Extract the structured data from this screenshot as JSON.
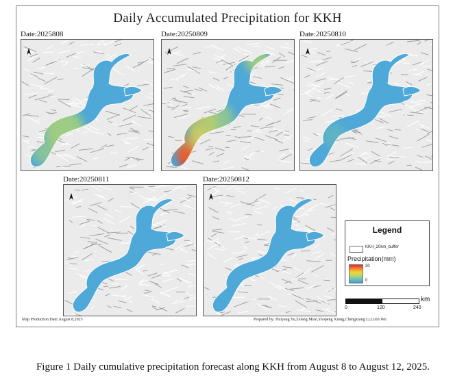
{
  "title": "Daily Accumulated Precipitation for KKH",
  "panels": [
    {
      "date_label": "Date:2025808",
      "max_mm": 10,
      "hotspots": [
        "light-green mid-left"
      ]
    },
    {
      "date_label": "Date:20250809",
      "max_mm": 30,
      "hotspots": [
        "red south-west tip",
        "yellow west",
        "light-green north-east"
      ]
    },
    {
      "date_label": "Date:20250810",
      "max_mm": 5,
      "hotspots": []
    },
    {
      "date_label": "Date:20250811",
      "max_mm": 3,
      "hotspots": []
    },
    {
      "date_label": "Date:20250812",
      "max_mm": 3,
      "hotspots": []
    }
  ],
  "legend": {
    "title": "Legend",
    "buffer_label": "KKH_20km_buffer",
    "precip_title": "Precipitation(mm)",
    "max_value": "30",
    "min_value": "0",
    "ramp_colors": [
      "#e8261f",
      "#f4d23a",
      "#b8d86a",
      "#6fbfbd",
      "#3f9ad6"
    ]
  },
  "scale": {
    "ticks": [
      "0",
      "120",
      "240"
    ],
    "unit": "km"
  },
  "production_date": "Map Production Date:August 8,2025",
  "prepared_by": "Prepared by: Huiyang Yu,Zelang Miao,Yaopeng Xiong,Chengxiang Li,Lixin Wu",
  "caption": "Figure 1 Daily cumulative precipitation forecast along KKH from August 8 to August 12, 2025.",
  "colors": {
    "base_blue": "#4ea8d8",
    "terrain": "#d8d8d8"
  }
}
